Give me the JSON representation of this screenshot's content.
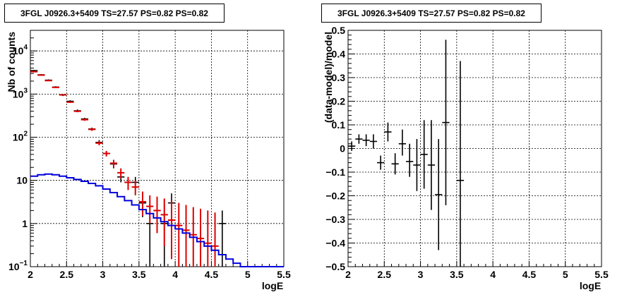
{
  "colors": {
    "data": "#000000",
    "model": "#dd0000",
    "component": "#0000dd",
    "grid": "#000000"
  },
  "left_title": "3FGL J0926.3+5409 TS=27.57 PS=0.82 PS=0.82",
  "right_title": "3FGL J0926.3+5409 TS=27.57 PS=0.82 PS=0.82",
  "chart_data": [
    {
      "type": "scatter",
      "title": "3FGL J0926.3+5409 TS=27.57 PS=0.82 PS=0.82",
      "xlabel": "logE",
      "ylabel": "Nb of counts",
      "xlim": [
        2,
        5.5
      ],
      "ylim": [
        0.1,
        30000
      ],
      "yscale": "log",
      "grid": true,
      "x_ticks": [
        "2",
        "2.5",
        "3",
        "3.5",
        "4",
        "4.5",
        "5",
        "5.5"
      ],
      "y_ticks": [
        {
          "value": 0.1,
          "mantissa": "10",
          "exp": "−1"
        },
        {
          "value": 1,
          "mantissa": "1",
          "exp": ""
        },
        {
          "value": 10,
          "mantissa": "10",
          "exp": ""
        },
        {
          "value": 100,
          "mantissa": "10",
          "exp": "2"
        },
        {
          "value": 1000,
          "mantissa": "10",
          "exp": "3"
        },
        {
          "value": 10000,
          "mantissa": "10",
          "exp": "4"
        }
      ],
      "bin_width": 0.1,
      "series": [
        {
          "style": "errorbars",
          "role": "data",
          "points": [
            {
              "x": 2.05,
              "y": 3500,
              "lo": 3380,
              "hi": 3620
            },
            {
              "x": 2.15,
              "y": 2800,
              "lo": 2700,
              "hi": 2900
            },
            {
              "x": 2.25,
              "y": 2100,
              "lo": 2010,
              "hi": 2190
            },
            {
              "x": 2.35,
              "y": 1450,
              "lo": 1380,
              "hi": 1520
            },
            {
              "x": 2.45,
              "y": 950,
              "lo": 900,
              "hi": 1000
            },
            {
              "x": 2.55,
              "y": 680,
              "lo": 640,
              "hi": 720
            },
            {
              "x": 2.65,
              "y": 410,
              "lo": 380,
              "hi": 440
            },
            {
              "x": 2.75,
              "y": 265,
              "lo": 249,
              "hi": 281
            },
            {
              "x": 2.85,
              "y": 155,
              "lo": 143,
              "hi": 167
            },
            {
              "x": 2.95,
              "y": 76,
              "lo": 66,
              "hi": 86
            },
            {
              "x": 3.05,
              "y": 42,
              "lo": 36,
              "hi": 48
            },
            {
              "x": 3.15,
              "y": 24,
              "lo": 19,
              "hi": 29
            },
            {
              "x": 3.25,
              "y": 12,
              "lo": 9,
              "hi": 16
            },
            {
              "x": 3.35,
              "y": 9,
              "lo": 6,
              "hi": 12
            },
            {
              "x": 3.45,
              "y": 9,
              "lo": 6,
              "hi": 12
            },
            {
              "x": 3.55,
              "y": 3,
              "lo": 1.4,
              "hi": 5
            },
            {
              "x": 3.65,
              "y": 1,
              "lo": 0.1,
              "hi": 3
            },
            {
              "x": 3.75,
              "y": 2,
              "lo": 0.6,
              "hi": 4
            },
            {
              "x": 3.85,
              "y": 1,
              "lo": 0.1,
              "hi": 3
            },
            {
              "x": 3.95,
              "y": 3,
              "lo": 1.4,
              "hi": 5
            },
            {
              "x": 4.65,
              "y": 1,
              "lo": 0.1,
              "hi": 2
            }
          ]
        },
        {
          "style": "errorbars",
          "role": "model",
          "points": [
            {
              "x": 2.05,
              "y": 3300,
              "lo": 3240,
              "hi": 3360
            },
            {
              "x": 2.15,
              "y": 2750,
              "lo": 2700,
              "hi": 2800
            },
            {
              "x": 2.25,
              "y": 2050,
              "lo": 2000,
              "hi": 2100
            },
            {
              "x": 2.35,
              "y": 1430,
              "lo": 1390,
              "hi": 1470
            },
            {
              "x": 2.45,
              "y": 960,
              "lo": 930,
              "hi": 990
            },
            {
              "x": 2.55,
              "y": 650,
              "lo": 625,
              "hi": 675
            },
            {
              "x": 2.65,
              "y": 400,
              "lo": 380,
              "hi": 420
            },
            {
              "x": 2.75,
              "y": 255,
              "lo": 240,
              "hi": 270
            },
            {
              "x": 2.85,
              "y": 152,
              "lo": 140,
              "hi": 164
            },
            {
              "x": 2.95,
              "y": 73,
              "lo": 65,
              "hi": 81
            },
            {
              "x": 3.05,
              "y": 42,
              "lo": 36,
              "hi": 48
            },
            {
              "x": 3.15,
              "y": 25,
              "lo": 20,
              "hi": 30
            },
            {
              "x": 3.25,
              "y": 15,
              "lo": 11,
              "hi": 19
            },
            {
              "x": 3.35,
              "y": 9,
              "lo": 6,
              "hi": 12
            },
            {
              "x": 3.45,
              "y": 7,
              "lo": 4.5,
              "hi": 10
            },
            {
              "x": 3.55,
              "y": 3.2,
              "lo": 1.5,
              "hi": 5.5
            },
            {
              "x": 3.65,
              "y": 2.5,
              "lo": 1,
              "hi": 4.5
            },
            {
              "x": 3.75,
              "y": 2.0,
              "lo": 0.6,
              "hi": 4.2
            },
            {
              "x": 3.85,
              "y": 1.6,
              "lo": 0.3,
              "hi": 3.8
            },
            {
              "x": 3.95,
              "y": 1.2,
              "lo": 0.15,
              "hi": 3.4
            },
            {
              "x": 4.05,
              "y": 0.9,
              "lo": 0.1,
              "hi": 3.0
            },
            {
              "x": 4.15,
              "y": 0.7,
              "lo": 0.1,
              "hi": 2.7
            },
            {
              "x": 4.25,
              "y": 0.55,
              "lo": 0.1,
              "hi": 2.4
            },
            {
              "x": 4.35,
              "y": 0.45,
              "lo": 0.1,
              "hi": 2.2
            },
            {
              "x": 4.45,
              "y": 0.35,
              "lo": 0.1,
              "hi": 2.0
            },
            {
              "x": 4.55,
              "y": 0.3,
              "lo": 0.1,
              "hi": 1.8
            }
          ]
        },
        {
          "style": "step",
          "role": "component",
          "edges_start": 2.0,
          "values": [
            12.5,
            13.5,
            14,
            13.5,
            12.5,
            11.5,
            10.5,
            9.5,
            8.5,
            7.5,
            6.3,
            5.2,
            4.2,
            3.4,
            2.7,
            2.1,
            1.7,
            1.35,
            1.1,
            0.9,
            0.75,
            0.6,
            0.48,
            0.38,
            0.3,
            0.24,
            0.19,
            0.15,
            0.12,
            0.1,
            0.1,
            0.1,
            0.1,
            0.1,
            0.1
          ]
        }
      ]
    },
    {
      "type": "scatter",
      "title": "3FGL J0926.3+5409 TS=27.57 PS=0.82 PS=0.82",
      "xlabel": "logE",
      "ylabel": "(data-model)/model",
      "xlim": [
        2,
        5.5
      ],
      "ylim": [
        -0.5,
        0.5
      ],
      "grid": true,
      "x_ticks": [
        "2",
        "2.5",
        "3",
        "3.5",
        "4",
        "4.5",
        "5",
        "5.5"
      ],
      "y_ticks": [
        "−0.5",
        "−0.4",
        "−0.3",
        "−0.2",
        "−0.1",
        "0",
        "0.1",
        "0.2",
        "0.3",
        "0.4",
        "0.5"
      ],
      "bin_width": 0.1,
      "series": [
        {
          "style": "errorbars",
          "role": "residual",
          "points": [
            {
              "x": 2.05,
              "y": 0.01,
              "lo": -0.01,
              "hi": 0.03
            },
            {
              "x": 2.15,
              "y": 0.04,
              "lo": 0.02,
              "hi": 0.06
            },
            {
              "x": 2.25,
              "y": 0.035,
              "lo": 0.01,
              "hi": 0.06
            },
            {
              "x": 2.35,
              "y": 0.03,
              "lo": 0.0,
              "hi": 0.06
            },
            {
              "x": 2.45,
              "y": -0.06,
              "lo": -0.09,
              "hi": -0.03
            },
            {
              "x": 2.55,
              "y": 0.07,
              "lo": 0.03,
              "hi": 0.11
            },
            {
              "x": 2.65,
              "y": -0.065,
              "lo": -0.11,
              "hi": -0.02
            },
            {
              "x": 2.75,
              "y": 0.02,
              "lo": -0.03,
              "hi": 0.08
            },
            {
              "x": 2.85,
              "y": -0.055,
              "lo": -0.12,
              "hi": 0.02
            },
            {
              "x": 2.95,
              "y": -0.07,
              "lo": -0.18,
              "hi": 0.04
            },
            {
              "x": 3.05,
              "y": -0.025,
              "lo": -0.17,
              "hi": 0.12
            },
            {
              "x": 3.15,
              "y": -0.07,
              "lo": -0.26,
              "hi": 0.12
            },
            {
              "x": 3.25,
              "y": -0.195,
              "lo": -0.43,
              "hi": 0.04
            },
            {
              "x": 3.35,
              "y": 0.11,
              "lo": -0.24,
              "hi": 0.46
            },
            {
              "x": 3.55,
              "y": -0.135,
              "lo": -0.5,
              "hi": 0.37
            }
          ]
        }
      ]
    }
  ]
}
